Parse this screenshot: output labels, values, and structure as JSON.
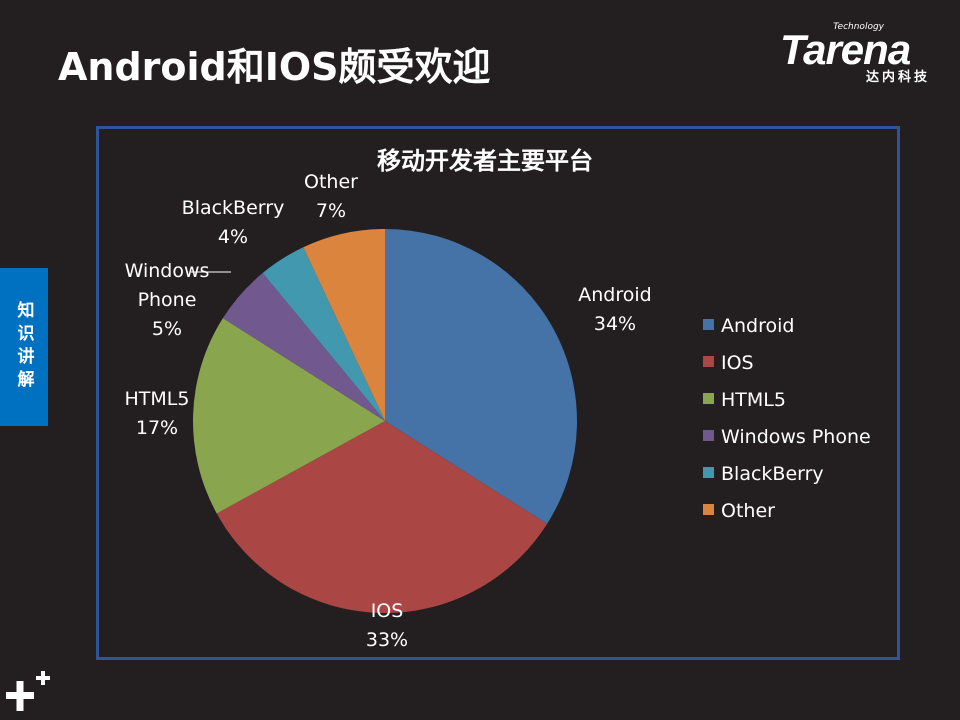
{
  "slide": {
    "title": "Android和IOS颇受欢迎",
    "side_tab": "知识讲解"
  },
  "logo": {
    "tech": "Technology",
    "brand": "Tarena",
    "sub": "达内科技"
  },
  "chart_data": {
    "type": "pie",
    "title": "移动开发者主要平台",
    "legend_position": "right",
    "slices": [
      {
        "label": "Android",
        "value": 34,
        "display": "34%",
        "color": "#4572a7"
      },
      {
        "label": "IOS",
        "value": 33,
        "display": "33%",
        "color": "#aa4643"
      },
      {
        "label": "HTML5",
        "value": 17,
        "display": "17%",
        "color": "#89a54e"
      },
      {
        "label": "Windows Phone",
        "value": 5,
        "display": "5%",
        "color": "#71588f"
      },
      {
        "label": "BlackBerry",
        "value": 4,
        "display": "4%",
        "color": "#4198af"
      },
      {
        "label": "Other",
        "value": 7,
        "display": "7%",
        "color": "#db843d"
      }
    ],
    "data_labels": [
      [
        "Android",
        "34%"
      ],
      [
        "IOS",
        "33%"
      ],
      [
        "HTML5",
        "17%"
      ],
      [
        "Windows",
        "Phone",
        "5%"
      ],
      [
        "BlackBerry",
        "4%"
      ],
      [
        "Other",
        "7%"
      ]
    ]
  }
}
